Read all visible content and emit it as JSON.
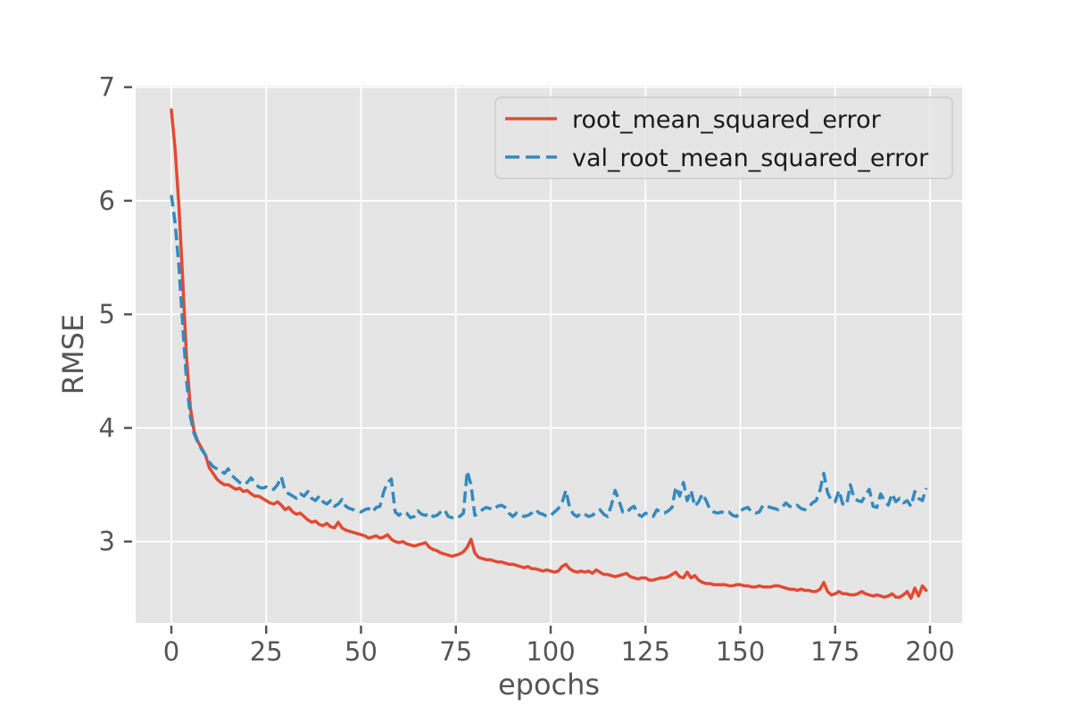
{
  "figure": {
    "background": "#ffffff",
    "plot_background": "#e5e5e5",
    "grid_color": "#ffffff",
    "tick_text_color": "#555555",
    "axis_label_color": "#555555",
    "legend_text_color": "#1a1a1a",
    "legend_border_color": "#cbcbcb",
    "legend_background": "rgba(229,229,229,0.85)"
  },
  "chart_data": {
    "type": "line",
    "title": "",
    "xlabel": "epochs",
    "ylabel": "RMSE",
    "xlim": [
      -9.41,
      208.47
    ],
    "ylim": [
      2.283,
      7.013
    ],
    "x_ticks": [
      0,
      25,
      50,
      75,
      100,
      125,
      150,
      175,
      200
    ],
    "y_ticks": [
      3,
      4,
      5,
      6,
      7
    ],
    "grid": true,
    "legend_position": "upper right",
    "x_start": 0,
    "x_step": 1,
    "n_points": 200,
    "series": [
      {
        "name": "root_mean_squared_error",
        "color": "#e24a33",
        "style": "solid",
        "values": [
          6.8,
          6.45,
          5.95,
          5.3,
          4.62,
          4.18,
          3.97,
          3.88,
          3.82,
          3.76,
          3.65,
          3.6,
          3.55,
          3.52,
          3.5,
          3.5,
          3.48,
          3.46,
          3.47,
          3.44,
          3.45,
          3.42,
          3.4,
          3.4,
          3.38,
          3.36,
          3.34,
          3.33,
          3.35,
          3.32,
          3.28,
          3.3,
          3.26,
          3.24,
          3.25,
          3.22,
          3.19,
          3.17,
          3.18,
          3.15,
          3.14,
          3.16,
          3.13,
          3.12,
          3.17,
          3.12,
          3.1,
          3.09,
          3.08,
          3.07,
          3.06,
          3.05,
          3.03,
          3.04,
          3.05,
          3.03,
          3.04,
          3.06,
          3.02,
          3.0,
          2.99,
          3.0,
          2.98,
          2.97,
          2.96,
          2.97,
          2.98,
          2.99,
          2.95,
          2.93,
          2.92,
          2.9,
          2.89,
          2.88,
          2.87,
          2.88,
          2.89,
          2.91,
          2.95,
          3.02,
          2.9,
          2.86,
          2.85,
          2.84,
          2.84,
          2.83,
          2.82,
          2.82,
          2.81,
          2.8,
          2.8,
          2.79,
          2.78,
          2.77,
          2.78,
          2.76,
          2.76,
          2.75,
          2.74,
          2.75,
          2.74,
          2.73,
          2.74,
          2.78,
          2.8,
          2.76,
          2.74,
          2.73,
          2.74,
          2.73,
          2.74,
          2.72,
          2.75,
          2.73,
          2.71,
          2.71,
          2.7,
          2.69,
          2.7,
          2.71,
          2.72,
          2.69,
          2.68,
          2.67,
          2.68,
          2.68,
          2.66,
          2.66,
          2.67,
          2.68,
          2.68,
          2.69,
          2.71,
          2.73,
          2.69,
          2.68,
          2.73,
          2.68,
          2.7,
          2.66,
          2.64,
          2.63,
          2.63,
          2.62,
          2.62,
          2.62,
          2.62,
          2.61,
          2.61,
          2.62,
          2.62,
          2.61,
          2.61,
          2.6,
          2.6,
          2.61,
          2.6,
          2.6,
          2.6,
          2.61,
          2.61,
          2.6,
          2.59,
          2.58,
          2.58,
          2.57,
          2.58,
          2.57,
          2.57,
          2.56,
          2.56,
          2.58,
          2.64,
          2.56,
          2.53,
          2.54,
          2.56,
          2.54,
          2.54,
          2.53,
          2.53,
          2.54,
          2.56,
          2.54,
          2.53,
          2.52,
          2.53,
          2.52,
          2.51,
          2.52,
          2.54,
          2.51,
          2.51,
          2.53,
          2.56,
          2.5,
          2.59,
          2.52,
          2.61,
          2.57
        ]
      },
      {
        "name": "val_root_mean_squared_error",
        "color": "#348abd",
        "style": "dashed",
        "values": [
          6.05,
          5.8,
          5.42,
          4.9,
          4.42,
          4.1,
          3.95,
          3.87,
          3.81,
          3.76,
          3.7,
          3.66,
          3.64,
          3.62,
          3.6,
          3.64,
          3.58,
          3.55,
          3.52,
          3.5,
          3.52,
          3.56,
          3.52,
          3.48,
          3.47,
          3.48,
          3.46,
          3.46,
          3.5,
          3.57,
          3.44,
          3.42,
          3.4,
          3.38,
          3.42,
          3.4,
          3.44,
          3.38,
          3.36,
          3.4,
          3.35,
          3.33,
          3.36,
          3.31,
          3.33,
          3.37,
          3.31,
          3.29,
          3.28,
          3.27,
          3.26,
          3.28,
          3.29,
          3.26,
          3.3,
          3.31,
          3.44,
          3.52,
          3.55,
          3.26,
          3.23,
          3.26,
          3.25,
          3.21,
          3.22,
          3.27,
          3.24,
          3.23,
          3.25,
          3.22,
          3.23,
          3.26,
          3.28,
          3.22,
          3.21,
          3.23,
          3.22,
          3.25,
          3.62,
          3.5,
          3.23,
          3.25,
          3.28,
          3.3,
          3.29,
          3.28,
          3.31,
          3.32,
          3.3,
          3.25,
          3.22,
          3.25,
          3.24,
          3.22,
          3.23,
          3.25,
          3.28,
          3.25,
          3.24,
          3.22,
          3.23,
          3.26,
          3.29,
          3.34,
          3.45,
          3.3,
          3.24,
          3.22,
          3.25,
          3.24,
          3.22,
          3.23,
          3.26,
          3.28,
          3.24,
          3.22,
          3.32,
          3.45,
          3.36,
          3.26,
          3.25,
          3.29,
          3.31,
          3.24,
          3.22,
          3.25,
          3.23,
          3.22,
          3.28,
          3.26,
          3.25,
          3.27,
          3.3,
          3.48,
          3.4,
          3.52,
          3.36,
          3.45,
          3.31,
          3.35,
          3.42,
          3.36,
          3.28,
          3.26,
          3.25,
          3.26,
          3.25,
          3.26,
          3.23,
          3.22,
          3.27,
          3.29,
          3.3,
          3.26,
          3.25,
          3.26,
          3.32,
          3.31,
          3.3,
          3.29,
          3.28,
          3.3,
          3.34,
          3.31,
          3.3,
          3.32,
          3.29,
          3.28,
          3.3,
          3.34,
          3.36,
          3.45,
          3.6,
          3.43,
          3.36,
          3.35,
          3.45,
          3.33,
          3.32,
          3.5,
          3.38,
          3.36,
          3.35,
          3.41,
          3.46,
          3.31,
          3.3,
          3.42,
          3.36,
          3.32,
          3.42,
          3.35,
          3.38,
          3.34,
          3.36,
          3.31,
          3.44,
          3.38,
          3.36,
          3.47
        ]
      }
    ]
  }
}
